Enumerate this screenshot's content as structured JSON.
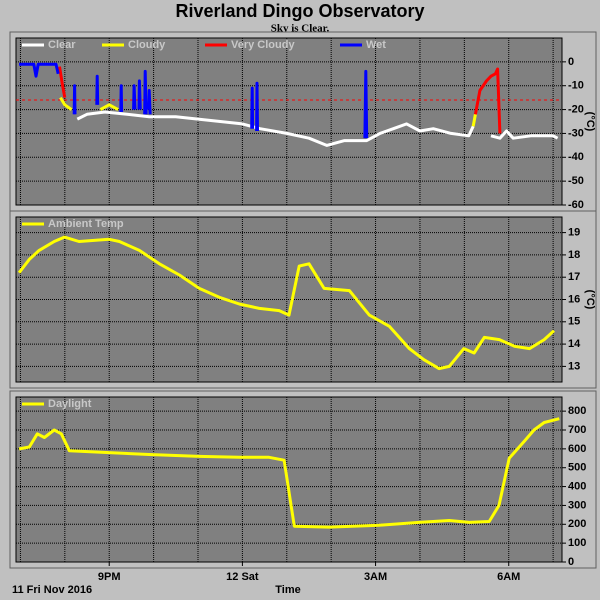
{
  "header": {
    "title": "Riverland Dingo Observatory",
    "subtitle": "Sky is Clear."
  },
  "x_axis": {
    "label": "Time",
    "date": "11 Fri Nov 2016",
    "xlim": [
      18.9,
      31.2
    ],
    "xticks": [
      {
        "value": 21,
        "label": "9PM"
      },
      {
        "value": 24,
        "label": "12 Sat"
      },
      {
        "value": 27,
        "label": "3AM"
      },
      {
        "value": 30,
        "label": "6AM"
      }
    ],
    "xgrid": [
      19,
      20,
      21,
      22,
      23,
      24,
      25,
      26,
      27,
      28,
      29,
      30,
      31
    ]
  },
  "chart_data": [
    {
      "type": "line",
      "ylabel": "(°C)",
      "ylim": [
        -60,
        10
      ],
      "yticks": [
        0,
        -10,
        -20,
        -30,
        -40,
        -50,
        -60
      ],
      "grid": true,
      "threshold": -16,
      "threshold_color": "#ff0000",
      "series": [
        {
          "name": "Clear",
          "color": "#ffffff",
          "x": [
            20.28,
            20.5,
            20.9,
            21.4,
            21.9,
            22.5,
            23.0,
            23.5,
            24.0,
            24.4,
            25.0,
            25.5,
            25.9,
            26.3,
            26.8,
            27.1,
            27.4,
            27.7,
            28.0,
            28.3,
            28.7,
            29.1,
            29.2,
            29.4,
            29.6,
            29.8,
            29.95,
            30.1,
            30.5,
            31.0,
            31.1
          ],
          "values": [
            -24,
            -22,
            -21,
            -22,
            -23,
            -23,
            -24,
            -25,
            -26,
            -28,
            -30,
            -32,
            -35,
            -33,
            -33,
            -30,
            -28,
            -26,
            -29,
            -28,
            -30,
            -31,
            -27,
            null,
            -31,
            -32,
            -29,
            -32,
            -31,
            -31,
            -32
          ]
        },
        {
          "name": "Cloudy",
          "color": "#ffff00",
          "x": [
            19.9,
            20.0,
            20.15,
            20.5,
            20.8,
            21.0,
            21.2,
            25.0,
            29.2,
            29.25
          ],
          "values": [
            -15,
            -18,
            -20,
            null,
            -20,
            -18,
            -20,
            null,
            -27,
            -22
          ]
        },
        {
          "name": "Very Cloudy",
          "color": "#ff0000",
          "x": [
            19.88,
            19.95,
            20.0,
            25.0,
            29.25,
            29.35,
            29.5,
            29.6,
            29.7,
            29.75,
            29.8
          ],
          "values": [
            -2,
            -10,
            -15,
            null,
            -22,
            -12,
            -8,
            -6,
            -5,
            -3,
            -30
          ]
        },
        {
          "name": "Wet",
          "color": "#0000ff",
          "x": [
            18.97,
            19.3,
            19.35,
            19.4,
            19.8,
            19.85,
            20.0,
            20.21,
            20.22,
            20.23,
            20.5,
            20.72,
            20.73,
            20.74,
            21.0,
            21.26,
            21.27,
            21.28,
            21.4,
            21.55,
            21.56,
            21.58,
            21.6,
            21.67,
            21.68,
            21.7,
            21.75,
            21.8,
            21.81,
            21.83,
            21.85,
            21.89,
            21.9,
            21.92,
            22.5,
            24.21,
            24.22,
            24.23,
            24.28,
            24.32,
            24.33,
            24.34,
            25.0,
            26.76,
            26.78,
            26.8
          ],
          "values": [
            -1,
            -1,
            -6,
            -1,
            -1,
            -5,
            null,
            -22,
            -10,
            -22,
            null,
            -18,
            -6,
            -18,
            null,
            -21,
            -10,
            -21,
            null,
            -20,
            -10,
            -20,
            null,
            -20,
            -8,
            -20,
            null,
            -22,
            -4,
            -22,
            null,
            -20,
            -12,
            -22,
            null,
            -28,
            -11,
            -28,
            null,
            -29,
            -9,
            -29,
            null,
            -32,
            -4,
            -32
          ]
        }
      ]
    },
    {
      "type": "line",
      "ylabel": "(°C)",
      "ylim": [
        12.3,
        19.7
      ],
      "yticks": [
        19,
        18,
        17,
        16,
        15,
        14,
        13
      ],
      "grid": true,
      "series": [
        {
          "name": "Ambient Temp",
          "color": "#ffff00",
          "x": [
            18.97,
            19.2,
            19.42,
            19.76,
            19.99,
            20.32,
            21.0,
            21.23,
            21.68,
            22.13,
            22.58,
            23.03,
            23.48,
            23.93,
            24.38,
            24.83,
            25.05,
            25.28,
            25.5,
            25.84,
            26.41,
            26.86,
            27.31,
            27.76,
            28.09,
            28.43,
            28.66,
            28.99,
            29.22,
            29.45,
            29.79,
            30.13,
            30.47,
            30.8,
            31.02
          ],
          "values": [
            17.2,
            17.8,
            18.2,
            18.6,
            18.8,
            18.6,
            18.7,
            18.6,
            18.2,
            17.6,
            17.1,
            16.5,
            16.1,
            15.8,
            15.6,
            15.5,
            15.3,
            17.5,
            17.6,
            16.5,
            16.4,
            15.3,
            14.8,
            13.8,
            13.3,
            12.9,
            13.0,
            13.8,
            13.6,
            14.3,
            14.2,
            13.9,
            13.8,
            14.2,
            14.6
          ]
        }
      ]
    },
    {
      "type": "line",
      "ylim": [
        0,
        875
      ],
      "yticks": [
        800,
        700,
        600,
        500,
        400,
        300,
        200,
        100,
        0
      ],
      "grid": true,
      "series": [
        {
          "name": "Daylight",
          "color": "#ffff00",
          "x": [
            18.97,
            19.2,
            19.38,
            19.54,
            19.76,
            19.92,
            20.1,
            21.0,
            21.9,
            23.03,
            23.93,
            24.6,
            24.94,
            25.17,
            25.95,
            27.08,
            27.98,
            28.66,
            29.11,
            29.56,
            29.78,
            30.01,
            30.35,
            30.57,
            30.8,
            31.14
          ],
          "values": [
            600,
            610,
            680,
            660,
            700,
            680,
            590,
            580,
            570,
            560,
            555,
            555,
            540,
            190,
            185,
            195,
            210,
            220,
            210,
            215,
            300,
            550,
            640,
            700,
            740,
            760
          ]
        }
      ]
    }
  ]
}
